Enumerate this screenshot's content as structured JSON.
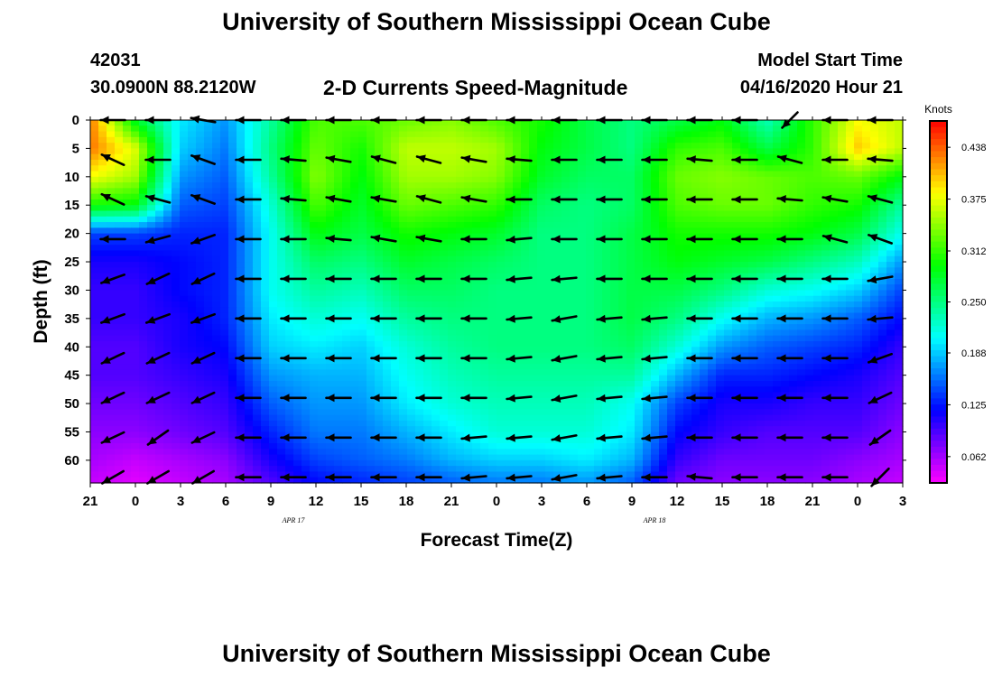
{
  "header": {
    "title": "University of Southern Mississippi Ocean Cube",
    "station_id": "42031",
    "coords": "30.0900N 88.2120W",
    "plot_title": "2-D Currents Speed-Magnitude",
    "model_start_label": "Model Start Time",
    "model_start_value": "04/16/2020 Hour 21"
  },
  "footer": {
    "title": "University of Southern Mississippi Ocean Cube"
  },
  "chart_data": {
    "type": "heatmap",
    "xlabel": "Forecast Time(Z)",
    "ylabel": "Depth (ft)",
    "x_tick_labels": [
      "21",
      "0",
      "3",
      "6",
      "9",
      "12",
      "15",
      "18",
      "21",
      "0",
      "3",
      "6",
      "9",
      "12",
      "15",
      "18",
      "21",
      "0",
      "3"
    ],
    "date_labels": [
      {
        "label": "APR 17",
        "after_tick_index": 5
      },
      {
        "label": "APR 18",
        "after_tick_index": 13
      }
    ],
    "x_range_hours": [
      0,
      54
    ],
    "y_tick_labels": [
      "0",
      "5",
      "10",
      "15",
      "20",
      "25",
      "30",
      "35",
      "40",
      "45",
      "50",
      "55",
      "60"
    ],
    "ylim_ft": [
      0,
      64
    ],
    "colorbar": {
      "title": "Knots",
      "ticks": [
        "0.438",
        "0.375",
        "0.312",
        "0.250",
        "0.188",
        "0.125",
        "0.062"
      ],
      "range": [
        0.03,
        0.47
      ]
    },
    "speed_grid": {
      "x_hours": [
        0,
        3,
        6,
        9,
        12,
        15,
        18,
        21,
        24,
        27,
        30,
        33,
        36,
        39,
        42,
        45,
        48,
        51,
        54
      ],
      "depth_ft": [
        0,
        5,
        10,
        15,
        20,
        25,
        30,
        35,
        40,
        45,
        50,
        55,
        60,
        64
      ],
      "values_knots": [
        [
          0.43,
          0.28,
          0.2,
          0.17,
          0.24,
          0.32,
          0.32,
          0.33,
          0.34,
          0.32,
          0.3,
          0.27,
          0.25,
          0.27,
          0.29,
          0.23,
          0.31,
          0.38,
          0.36
        ],
        [
          0.43,
          0.37,
          0.19,
          0.16,
          0.25,
          0.33,
          0.3,
          0.36,
          0.36,
          0.35,
          0.29,
          0.27,
          0.25,
          0.31,
          0.32,
          0.27,
          0.31,
          0.4,
          0.36
        ],
        [
          0.38,
          0.35,
          0.17,
          0.15,
          0.24,
          0.34,
          0.29,
          0.35,
          0.35,
          0.34,
          0.28,
          0.26,
          0.26,
          0.33,
          0.34,
          0.33,
          0.32,
          0.33,
          0.29
        ],
        [
          0.3,
          0.29,
          0.15,
          0.14,
          0.22,
          0.32,
          0.28,
          0.33,
          0.32,
          0.31,
          0.26,
          0.25,
          0.26,
          0.32,
          0.33,
          0.33,
          0.31,
          0.3,
          0.24
        ],
        [
          0.14,
          0.14,
          0.13,
          0.13,
          0.21,
          0.29,
          0.27,
          0.3,
          0.29,
          0.28,
          0.25,
          0.25,
          0.27,
          0.3,
          0.3,
          0.3,
          0.29,
          0.27,
          0.21
        ],
        [
          0.11,
          0.11,
          0.12,
          0.13,
          0.21,
          0.26,
          0.25,
          0.28,
          0.27,
          0.26,
          0.25,
          0.25,
          0.27,
          0.29,
          0.28,
          0.27,
          0.25,
          0.23,
          0.17
        ],
        [
          0.1,
          0.1,
          0.12,
          0.13,
          0.21,
          0.24,
          0.23,
          0.26,
          0.26,
          0.25,
          0.25,
          0.25,
          0.27,
          0.27,
          0.25,
          0.22,
          0.21,
          0.19,
          0.14
        ],
        [
          0.1,
          0.1,
          0.11,
          0.13,
          0.2,
          0.22,
          0.21,
          0.24,
          0.25,
          0.25,
          0.25,
          0.25,
          0.27,
          0.25,
          0.21,
          0.18,
          0.17,
          0.15,
          0.12
        ],
        [
          0.09,
          0.09,
          0.11,
          0.12,
          0.19,
          0.2,
          0.19,
          0.22,
          0.24,
          0.25,
          0.25,
          0.25,
          0.26,
          0.22,
          0.17,
          0.15,
          0.14,
          0.13,
          0.1
        ],
        [
          0.09,
          0.09,
          0.1,
          0.11,
          0.17,
          0.18,
          0.18,
          0.21,
          0.23,
          0.24,
          0.24,
          0.24,
          0.24,
          0.18,
          0.13,
          0.13,
          0.12,
          0.11,
          0.09
        ],
        [
          0.08,
          0.08,
          0.09,
          0.1,
          0.15,
          0.17,
          0.17,
          0.2,
          0.22,
          0.23,
          0.23,
          0.23,
          0.21,
          0.14,
          0.11,
          0.11,
          0.1,
          0.1,
          0.08
        ],
        [
          0.07,
          0.07,
          0.08,
          0.09,
          0.13,
          0.16,
          0.16,
          0.18,
          0.2,
          0.22,
          0.22,
          0.22,
          0.2,
          0.12,
          0.1,
          0.09,
          0.09,
          0.09,
          0.07
        ],
        [
          0.06,
          0.05,
          0.06,
          0.07,
          0.11,
          0.14,
          0.15,
          0.16,
          0.18,
          0.19,
          0.19,
          0.2,
          0.18,
          0.1,
          0.08,
          0.08,
          0.08,
          0.07,
          0.06
        ],
        [
          0.05,
          0.04,
          0.05,
          0.06,
          0.09,
          0.12,
          0.13,
          0.14,
          0.15,
          0.16,
          0.16,
          0.17,
          0.15,
          0.08,
          0.07,
          0.07,
          0.07,
          0.06,
          0.05
        ]
      ]
    },
    "vectors": {
      "x_hours": [
        1.5,
        4.5,
        7.5,
        10.5,
        13.5,
        16.5,
        19.5,
        22.5,
        25.5,
        28.5,
        31.5,
        34.5,
        37.5,
        40.5,
        43.5,
        46.5,
        49.5,
        52.5
      ],
      "depth_ft": [
        0,
        7,
        14,
        21,
        28,
        35,
        42,
        49,
        56,
        63
      ],
      "direction_deg": [
        [
          180,
          180,
          170,
          180,
          180,
          180,
          180,
          180,
          180,
          180,
          180,
          180,
          180,
          180,
          180,
          225,
          180,
          180
        ],
        [
          155,
          180,
          160,
          180,
          175,
          170,
          165,
          165,
          170,
          175,
          180,
          180,
          180,
          175,
          180,
          165,
          180,
          175
        ],
        [
          155,
          165,
          160,
          180,
          175,
          170,
          170,
          165,
          170,
          180,
          180,
          180,
          180,
          180,
          180,
          175,
          170,
          165
        ],
        [
          180,
          195,
          200,
          180,
          180,
          175,
          170,
          170,
          180,
          185,
          180,
          180,
          180,
          180,
          180,
          180,
          165,
          160
        ],
        [
          200,
          205,
          205,
          180,
          180,
          180,
          180,
          180,
          180,
          185,
          185,
          180,
          180,
          180,
          180,
          180,
          180,
          190
        ],
        [
          200,
          200,
          200,
          180,
          180,
          180,
          180,
          180,
          180,
          185,
          190,
          185,
          185,
          180,
          180,
          180,
          180,
          185
        ],
        [
          205,
          205,
          205,
          180,
          180,
          180,
          180,
          180,
          180,
          185,
          190,
          185,
          185,
          180,
          180,
          180,
          180,
          200
        ],
        [
          205,
          205,
          205,
          180,
          180,
          180,
          180,
          180,
          180,
          185,
          190,
          185,
          185,
          180,
          180,
          180,
          180,
          205
        ],
        [
          205,
          215,
          205,
          180,
          180,
          180,
          180,
          180,
          185,
          185,
          190,
          185,
          185,
          180,
          180,
          180,
          180,
          215
        ],
        [
          210,
          210,
          210,
          180,
          180,
          180,
          180,
          180,
          185,
          185,
          190,
          185,
          180,
          175,
          180,
          180,
          180,
          225
        ]
      ],
      "length_rel": [
        [
          0.9,
          0.9,
          0.9,
          0.9,
          0.9,
          0.9,
          0.9,
          0.9,
          0.9,
          0.9,
          0.9,
          0.9,
          0.9,
          0.9,
          0.9,
          0.8,
          0.9,
          0.9
        ],
        [
          0.9,
          0.9,
          0.9,
          0.9,
          0.9,
          0.9,
          0.9,
          0.9,
          0.9,
          0.9,
          0.9,
          0.9,
          0.9,
          0.9,
          0.9,
          0.9,
          0.9,
          0.9
        ],
        [
          0.9,
          0.9,
          0.9,
          0.9,
          0.9,
          0.9,
          0.9,
          0.9,
          0.9,
          0.9,
          0.9,
          0.9,
          0.9,
          0.9,
          0.9,
          0.9,
          0.9,
          0.9
        ],
        [
          0.9,
          0.9,
          0.9,
          0.9,
          0.9,
          0.9,
          0.9,
          0.9,
          0.9,
          0.9,
          0.9,
          0.9,
          0.9,
          0.9,
          0.9,
          0.9,
          0.9,
          0.9
        ],
        [
          0.9,
          0.9,
          0.9,
          0.9,
          0.9,
          0.9,
          0.9,
          0.9,
          0.9,
          0.9,
          0.9,
          0.9,
          0.9,
          0.9,
          0.9,
          0.9,
          0.9,
          0.9
        ],
        [
          0.9,
          0.9,
          0.9,
          0.9,
          0.9,
          0.9,
          0.9,
          0.9,
          0.9,
          0.9,
          0.9,
          0.9,
          0.9,
          0.9,
          0.9,
          0.9,
          0.9,
          0.9
        ],
        [
          0.9,
          0.9,
          0.9,
          0.9,
          0.9,
          0.9,
          0.9,
          0.9,
          0.9,
          0.9,
          0.9,
          0.9,
          0.9,
          0.9,
          0.9,
          0.9,
          0.9,
          0.9
        ],
        [
          0.9,
          0.9,
          0.9,
          0.9,
          0.9,
          0.9,
          0.9,
          0.9,
          0.9,
          0.9,
          0.9,
          0.9,
          0.9,
          0.9,
          0.9,
          0.9,
          0.9,
          0.9
        ],
        [
          0.9,
          0.9,
          0.9,
          0.9,
          0.9,
          0.9,
          0.9,
          0.9,
          0.9,
          0.9,
          0.9,
          0.9,
          0.9,
          0.9,
          0.9,
          0.9,
          0.9,
          0.9
        ],
        [
          0.9,
          0.9,
          0.9,
          0.9,
          0.9,
          0.9,
          0.9,
          0.9,
          0.9,
          0.9,
          0.9,
          0.9,
          0.9,
          0.9,
          0.9,
          0.9,
          0.9,
          0.9
        ]
      ]
    }
  }
}
